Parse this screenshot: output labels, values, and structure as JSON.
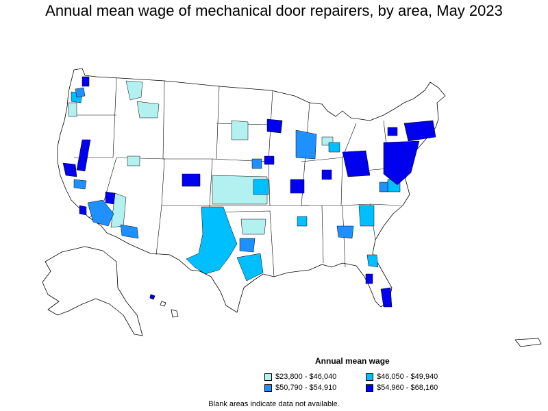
{
  "title": "Annual mean wage of mechanical door repairers, by area, May 2023",
  "legend": {
    "title": "Annual mean wage",
    "items": [
      {
        "label": "$23,800 - $46,040",
        "color": "#b3f0f0"
      },
      {
        "label": "$46,050 - $49,940",
        "color": "#00bfff"
      },
      {
        "label": "$50,790 - $54,910",
        "color": "#1e90ff"
      },
      {
        "label": "$54,960 - $68,160",
        "color": "#0000ee"
      }
    ]
  },
  "note": "Blank areas indicate data not available."
}
